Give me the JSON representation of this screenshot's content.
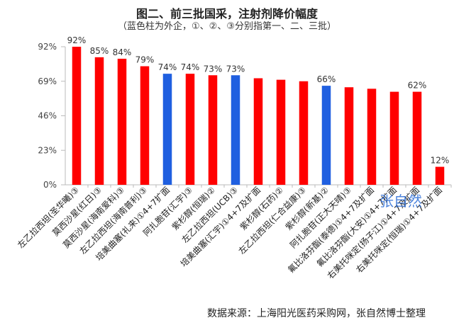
{
  "chart_data": {
    "type": "bar",
    "title": "图二、前三批国采，注射剂降价幅度",
    "subtitle": "（蓝色柱为外企，①、②、③分别指第一、二、三批）",
    "categories": [
      "左乙拉西坦(圣华曦)③",
      "莫西沙星(红日)③",
      "莫西沙星(海南爱科)③",
      "左乙拉西坦(海南普利)③",
      "培美曲塞(礼来)①4+7扩面",
      "阿扎胞苷(汇宇)③",
      "紫杉醇(恒瑞)②",
      "左乙拉西坦(UCB)③",
      "培美曲塞(汇宇)①4+7及扩面",
      "紫杉醇(石药)②",
      "左乙拉西坦(仁合益康)③",
      "紫杉醇(新基)②",
      "阿扎胞苷(正大天晴)③",
      "氟比洛芬酯(泰德)①4+7及扩面",
      "氟比洛芬酯(大安)①4+7扩面",
      "右美托咪定(扬子江)①4+7及扩面",
      "右美托咪定(恒瑞)①4+7及扩面"
    ],
    "values": [
      92,
      85,
      84,
      79,
      74,
      74,
      73,
      73,
      71,
      70,
      69,
      66,
      65,
      64,
      62,
      62,
      12
    ],
    "data_labels": [
      "92%",
      "85%",
      "84%",
      "79%",
      "74%",
      "74%",
      "73%",
      "73%",
      "",
      "",
      "",
      "66%",
      "",
      "",
      "",
      "62%",
      "12%"
    ],
    "bar_colors": [
      "#ff0000",
      "#ff0000",
      "#ff0000",
      "#ff0000",
      "#1f5fe0",
      "#ff0000",
      "#ff0000",
      "#1f5fe0",
      "#ff0000",
      "#ff0000",
      "#ff0000",
      "#1f5fe0",
      "#ff0000",
      "#ff0000",
      "#ff0000",
      "#ff0000",
      "#ff0000"
    ],
    "yticks": [
      "0%",
      "23%",
      "46%",
      "69%",
      "92%"
    ],
    "ytick_values": [
      0,
      23,
      46,
      69,
      92
    ],
    "ylim": [
      0,
      92
    ],
    "xlabel": "",
    "ylabel": "",
    "grid": false,
    "legend": "none"
  },
  "source": "数据来源：上海阳光医药采购网，张自然博士整理",
  "watermark": "张自然"
}
